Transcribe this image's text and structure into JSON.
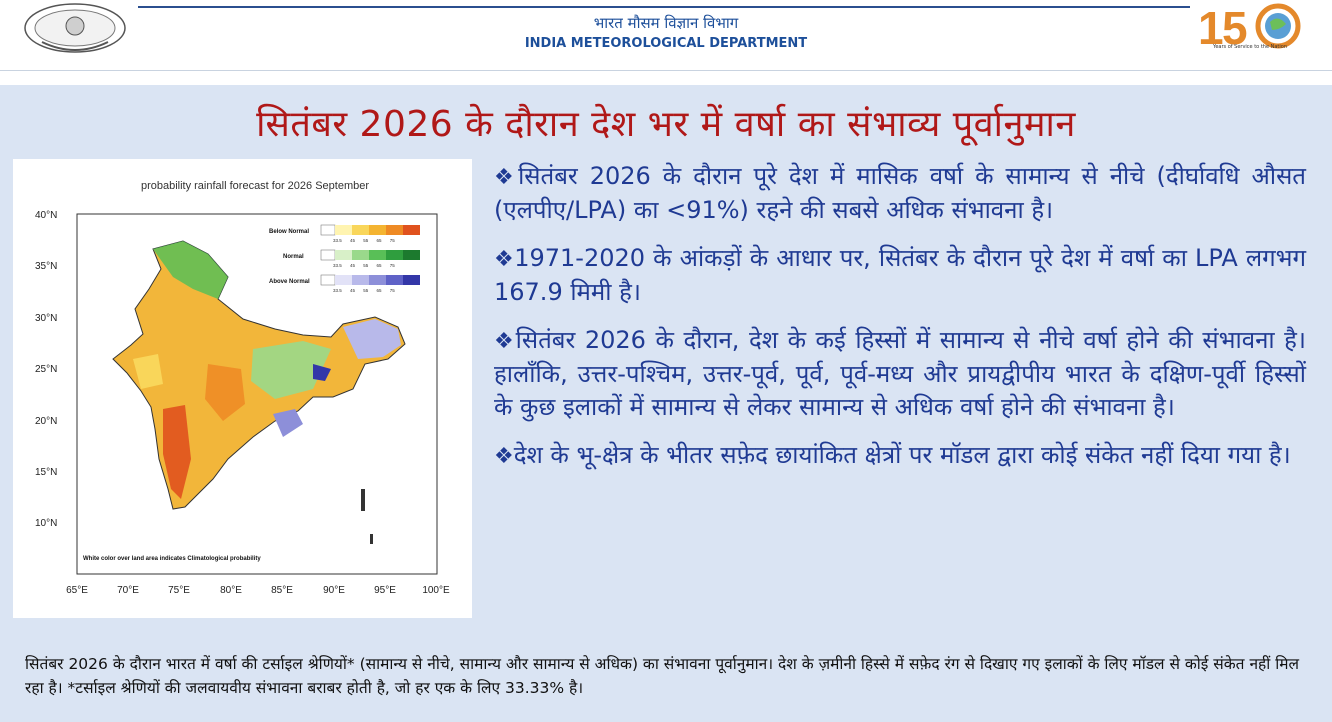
{
  "header": {
    "dept_hindi": "भारत मौसम विज्ञान विभाग",
    "dept_english": "INDIA METEOROLOGICAL DEPARTMENT",
    "anniversary_caption": "Years of Service to the Nation"
  },
  "slide": {
    "title": "सितंबर 2026 के दौरान देश भर में वर्षा का संभाव्य पूर्वानुमान",
    "map": {
      "title": "probability rainfall forecast for 2026 September",
      "lat_labels": [
        "40°N",
        "35°N",
        "30°N",
        "25°N",
        "20°N",
        "15°N",
        "10°N"
      ],
      "lon_labels": [
        "65°E",
        "70°E",
        "75°E",
        "80°E",
        "85°E",
        "90°E",
        "95°E",
        "100°E"
      ],
      "legend": [
        {
          "label": "Below Normal",
          "ticks": "33.5 45 55 65 75",
          "colors": [
            "#fff4b0",
            "#f9d65a",
            "#f4b431",
            "#ee8a24",
            "#e0521e"
          ]
        },
        {
          "label": "Normal",
          "ticks": "33.5 45 55 65 75",
          "colors": [
            "#d8f0c8",
            "#9ad98b",
            "#59bf57",
            "#2f9e3e",
            "#1c7a2e"
          ]
        },
        {
          "label": "Above Normal",
          "ticks": "33.5 45 55 65 75",
          "colors": [
            "#e2e2f7",
            "#b8b9ea",
            "#8d8fd9",
            "#5f62c7",
            "#3337a8"
          ]
        }
      ],
      "note": "White color over land area indicates Climatological probability"
    },
    "bullets": [
      {
        "mark": "❖",
        "text": "सितंबर 2026 के दौरान पूरे देश में मासिक वर्षा के सामान्य से नीचे (दीर्घावधि औसत (एलपीए/LPA) का <91%) रहने की सबसे अधिक संभावना है।"
      },
      {
        "mark": "❖",
        "text": "1971-2020 के आंकड़ों के आधार पर, सितंबर के दौरान पूरे देश में वर्षा का LPA लगभग 167.9 मिमी है।"
      },
      {
        "mark": "❖",
        "text": "सितंबर 2026 के दौरान, देश के कई हिस्सों में सामान्य से नीचे वर्षा होने की संभावना है। हालाँकि, उत्तर-पश्चिम, उत्तर-पूर्व, पूर्व, पूर्व-मध्य और प्रायद्वीपीय भारत के दक्षिण-पूर्वी हिस्सों के कुछ इलाकों में सामान्य से लेकर सामान्य से अधिक वर्षा होने की संभावना है।"
      },
      {
        "mark": "❖",
        "text": "देश के भू-क्षेत्र के भीतर सफ़ेद छायांकित क्षेत्रों पर मॉडल द्वारा कोई संकेत नहीं दिया गया है।"
      }
    ],
    "caption": "सितंबर 2026 के दौरान भारत में वर्षा की टर्साइल श्रेणियों* (सामान्य से नीचे, सामान्य और सामान्य से अधिक) का संभावना पूर्वानुमान। देश के ज़मीनी हिस्से में सफ़ेद रंग से दिखाए गए इलाकों के लिए मॉडल से कोई संकेत नहीं मिल रहा है। *टर्साइल श्रेणियों की जलवायवीय संभावना बराबर होती है, जो हर एक के लिए 33.33% है।"
  }
}
